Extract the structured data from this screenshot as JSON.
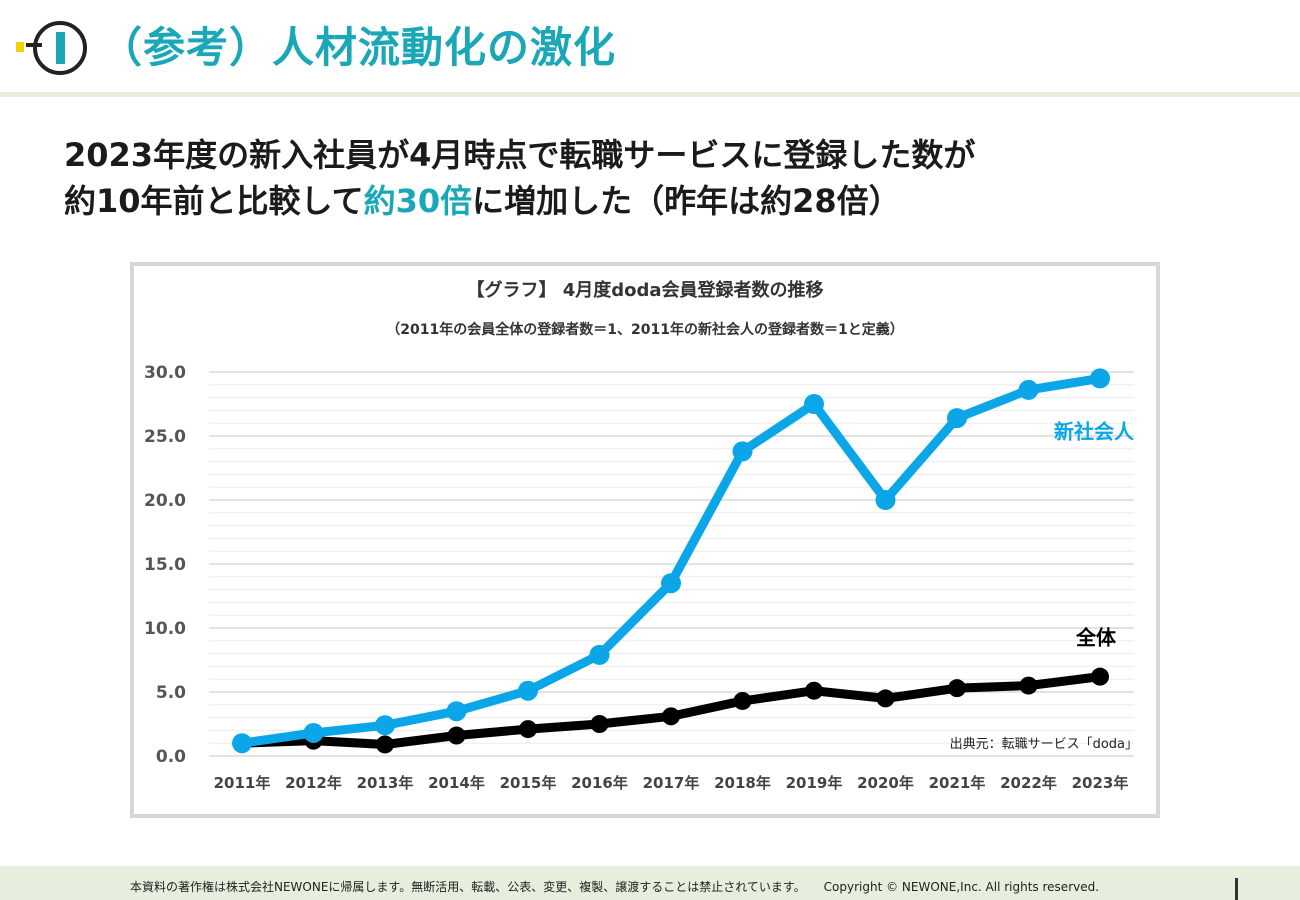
{
  "header": {
    "title": "（参考）人材流動化の激化"
  },
  "headline": {
    "line1": "2023年度の新入社員が4月時点で転職サービスに登録した数が",
    "line2_prefix": "約10年前と比較して",
    "line2_accent": "約30倍",
    "line2_suffix": "に増加した（昨年は約28倍）"
  },
  "colors": {
    "accent": "#1aa7b8",
    "new_grad_series": "#0aa6e8",
    "all_series": "#000000",
    "footer_bg": "#e6efdd"
  },
  "chart_data": {
    "type": "line",
    "title": "【グラフ】 4月度doda会員登録者数の推移",
    "subtitle": "（2011年の会員全体の登録者数＝1、2011年の新社会人の登録者数＝1と定義）",
    "categories": [
      "2011年",
      "2012年",
      "2013年",
      "2014年",
      "2015年",
      "2016年",
      "2017年",
      "2018年",
      "2019年",
      "2020年",
      "2021年",
      "2022年",
      "2023年"
    ],
    "series": [
      {
        "name": "新社会人",
        "values": [
          1.0,
          1.8,
          2.4,
          3.5,
          5.1,
          7.9,
          13.5,
          23.8,
          27.5,
          20.0,
          26.4,
          28.6,
          29.5
        ]
      },
      {
        "name": "全体",
        "values": [
          1.0,
          1.2,
          0.9,
          1.6,
          2.1,
          2.5,
          3.1,
          4.3,
          5.1,
          4.5,
          5.3,
          5.5,
          6.2
        ]
      }
    ],
    "y_ticks": [
      "0.0",
      "5.0",
      "10.0",
      "15.0",
      "20.0",
      "25.0",
      "30.0"
    ],
    "ylim": [
      0,
      30
    ],
    "grid": true,
    "source": "出典元：転職サービス「doda」"
  },
  "footer": {
    "text": "本資料の著作権は株式会社NEWONEに帰属します。無断活用、転載、公表、変更、複製、譲渡することは禁止されています。　　Copyright © NEWONE,Inc.  All rights reserved."
  }
}
